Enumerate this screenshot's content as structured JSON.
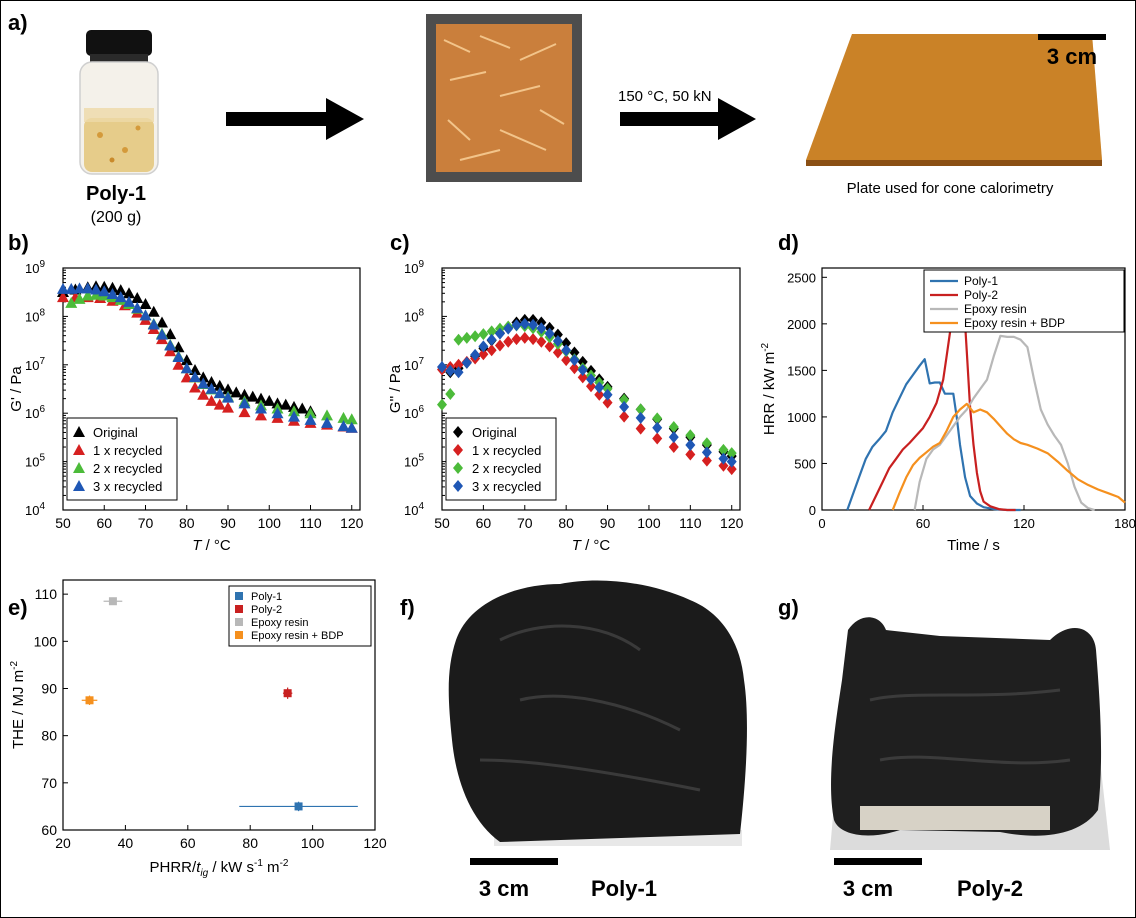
{
  "panels": {
    "a": {
      "letter": "a)",
      "material_name": "Poly-1",
      "material_amount": "(200 g)",
      "process_condition": "150 °C, 50 kN",
      "scale_bar": "3 cm",
      "plate_caption": "Plate used for cone calorimetry"
    },
    "f": {
      "letter": "f)",
      "scale_bar": "3 cm",
      "label": "Poly-1"
    },
    "g": {
      "letter": "g)",
      "scale_bar": "3 cm",
      "label": "Poly-2"
    }
  },
  "colors": {
    "black": "#000000",
    "red": "#d62020",
    "green": "#4cbb3a",
    "blue": "#1f57b5",
    "d_poly1": "#2f73b0",
    "d_poly2": "#c82020",
    "d_epoxy": "#b8b8b8",
    "d_epoxy_bdp": "#f5901e",
    "char": "#1b1b1b",
    "jar": "#e6d2a0",
    "plate": "#d08a2c",
    "mold": "#5b5b5b"
  },
  "chart_data": [
    {
      "id": "b",
      "letter": "b)",
      "type": "scatter",
      "xlabel_var": "T",
      "xlabel_unit": " / °C",
      "ylabel": "G' / Pa",
      "y_scale": "log",
      "xlim": [
        50,
        122
      ],
      "ylim_exp": [
        4,
        9
      ],
      "x_ticks": [
        "50",
        "60",
        "70",
        "80",
        "90",
        "100",
        "110",
        "120"
      ],
      "y_ticks": [
        "10",
        "10",
        "10",
        "10",
        "10",
        "10"
      ],
      "y_tick_exps": [
        "4",
        "5",
        "6",
        "7",
        "8",
        "9"
      ],
      "legend_position": "bottom-left",
      "series": [
        {
          "name": "Original",
          "color": "black",
          "marker": "triangle",
          "x": [
            50,
            53,
            56,
            58,
            60,
            62,
            64,
            66,
            68,
            70,
            72,
            74,
            76,
            78,
            80,
            82,
            84,
            86,
            88,
            90,
            92,
            94,
            96,
            98,
            100,
            102,
            104,
            106,
            108,
            110
          ],
          "y": [
            320000000.0,
            360000000.0,
            400000000.0,
            420000000.0,
            410000000.0,
            390000000.0,
            350000000.0,
            300000000.0,
            240000000.0,
            180000000.0,
            125000000.0,
            75000000.0,
            43000000.0,
            23000000.0,
            12500000.0,
            7800000.0,
            5500000.0,
            4400000.0,
            3700000.0,
            3100000.0,
            2700000.0,
            2400000.0,
            2200000.0,
            2000000.0,
            1800000.0,
            1600000.0,
            1500000.0,
            1350000.0,
            1250000.0,
            1100000.0
          ]
        },
        {
          "name": "1 x recycled",
          "color": "red",
          "marker": "triangle",
          "x": [
            50,
            53,
            56,
            59,
            62,
            65,
            68,
            70,
            72,
            74,
            76,
            78,
            80,
            82,
            84,
            86,
            88,
            90,
            94,
            98,
            102,
            106,
            110,
            114,
            118,
            120
          ],
          "y": [
            250000000.0,
            250000000.0,
            250000000.0,
            240000000.0,
            210000000.0,
            170000000.0,
            120000000.0,
            85000000.0,
            55000000.0,
            34000000.0,
            19000000.0,
            10000000.0,
            5500000.0,
            3400000.0,
            2400000.0,
            1800000.0,
            1500000.0,
            1300000.0,
            1050000.0,
            900000.0,
            800000.0,
            700000.0,
            630000.0,
            580000.0,
            530000.0,
            500000.0
          ]
        },
        {
          "name": "2 x recycled",
          "color": "green",
          "marker": "triangle",
          "x": [
            52,
            54,
            56,
            58,
            60,
            62,
            64,
            66,
            68,
            70,
            72,
            74,
            76,
            78,
            80,
            82,
            84,
            86,
            88,
            90,
            94,
            98,
            102,
            106,
            110,
            114,
            118,
            120
          ],
          "y": [
            190000000.0,
            230000000.0,
            270000000.0,
            280000000.0,
            270000000.0,
            250000000.0,
            220000000.0,
            180000000.0,
            145000000.0,
            105000000.0,
            70000000.0,
            44000000.0,
            26000000.0,
            15000000.0,
            8500000.0,
            5500000.0,
            4000000.0,
            3100000.0,
            2600000.0,
            2200000.0,
            1750000.0,
            1450000.0,
            1250000.0,
            1100000.0,
            1000000.0,
            900000.0,
            800000.0,
            750000.0
          ]
        },
        {
          "name": "3 x recycled",
          "color": "blue",
          "marker": "triangle",
          "x": [
            50,
            52,
            54,
            56,
            58,
            60,
            62,
            64,
            66,
            68,
            70,
            72,
            74,
            76,
            78,
            80,
            82,
            84,
            86,
            88,
            90,
            94,
            98,
            102,
            106,
            110,
            114,
            118,
            120
          ],
          "y": [
            370000000.0,
            370000000.0,
            380000000.0,
            380000000.0,
            360000000.0,
            330000000.0,
            290000000.0,
            250000000.0,
            200000000.0,
            150000000.0,
            105000000.0,
            68000000.0,
            42000000.0,
            25000000.0,
            14500000.0,
            8500000.0,
            5600000.0,
            4100000.0,
            3200000.0,
            2600000.0,
            2100000.0,
            1600000.0,
            1250000.0,
            1000000.0,
            850000.0,
            730000.0,
            630000.0,
            540000.0,
            500000.0
          ]
        }
      ]
    },
    {
      "id": "c",
      "letter": "c)",
      "type": "scatter",
      "xlabel_var": "T",
      "xlabel_unit": " / °C",
      "ylabel": "G'' / Pa",
      "y_scale": "log",
      "xlim": [
        50,
        122
      ],
      "ylim_exp": [
        4,
        9
      ],
      "x_ticks": [
        "50",
        "60",
        "70",
        "80",
        "90",
        "100",
        "110",
        "120"
      ],
      "y_ticks": [
        "10",
        "10",
        "10",
        "10",
        "10",
        "10"
      ],
      "y_tick_exps": [
        "4",
        "5",
        "6",
        "7",
        "8",
        "9"
      ],
      "legend_position": "bottom-left",
      "series": [
        {
          "name": "Original",
          "color": "black",
          "marker": "diamond",
          "x": [
            52,
            54,
            56,
            58,
            60,
            62,
            64,
            66,
            68,
            70,
            72,
            74,
            76,
            78,
            80,
            82,
            84,
            86,
            88,
            90,
            94,
            98,
            102,
            106,
            110,
            114,
            118,
            120
          ],
          "y": [
            7000000.0,
            8500000.0,
            11000000.0,
            15000000.0,
            22000000.0,
            32000000.0,
            45000000.0,
            60000000.0,
            75000000.0,
            85000000.0,
            85000000.0,
            75000000.0,
            58000000.0,
            42000000.0,
            28000000.0,
            18000000.0,
            11500000.0,
            7500000.0,
            5000000.0,
            3500000.0,
            2000000.0,
            1200000.0,
            750000.0,
            480000.0,
            320000.0,
            220000.0,
            160000.0,
            130000.0
          ]
        },
        {
          "name": "1 x recycled",
          "color": "red",
          "marker": "diamond",
          "x": [
            50,
            52,
            54,
            56,
            58,
            60,
            62,
            64,
            66,
            68,
            70,
            72,
            74,
            76,
            78,
            80,
            82,
            84,
            86,
            88,
            90,
            94,
            98,
            102,
            106,
            110,
            114,
            118,
            120
          ],
          "y": [
            8000000.0,
            9000000.0,
            10000000.0,
            11500000.0,
            13500000.0,
            16500000.0,
            20000000.0,
            25000000.0,
            30000000.0,
            34000000.0,
            36000000.0,
            34000000.0,
            30000000.0,
            24000000.0,
            18000000.0,
            12500000.0,
            8500000.0,
            5500000.0,
            3600000.0,
            2400000.0,
            1650000.0,
            850000.0,
            480000.0,
            300000.0,
            200000.0,
            140000.0,
            105000.0,
            82000.0,
            70000.0
          ]
        },
        {
          "name": "2 x recycled",
          "color": "green",
          "marker": "diamond",
          "x": [
            50,
            52,
            54,
            56,
            58,
            60,
            62,
            64,
            66,
            68,
            70,
            72,
            74,
            76,
            78,
            80,
            82,
            84,
            86,
            88,
            90,
            94,
            98,
            102,
            106,
            110,
            114,
            118,
            120
          ],
          "y": [
            1500000.0,
            2500000.0,
            33000000.0,
            36000000.0,
            39000000.0,
            43000000.0,
            49000000.0,
            56000000.0,
            62000000.0,
            65000000.0,
            63000000.0,
            57000000.0,
            48000000.0,
            37000000.0,
            27000000.0,
            19000000.0,
            13000000.0,
            8500000.0,
            6000000.0,
            4300000.0,
            3200000.0,
            1900000.0,
            1200000.0,
            780000.0,
            520000.0,
            350000.0,
            240000.0,
            175000.0,
            150000.0
          ]
        },
        {
          "name": "3 x recycled",
          "color": "blue",
          "marker": "diamond",
          "x": [
            50,
            52,
            54,
            56,
            58,
            60,
            62,
            64,
            66,
            68,
            70,
            72,
            74,
            76,
            78,
            80,
            82,
            84,
            86,
            88,
            90,
            94,
            98,
            102,
            106,
            110,
            114,
            118,
            120
          ],
          "y": [
            9000000.0,
            7500000.0,
            7000000.0,
            11000000.0,
            16000000.0,
            24000000.0,
            33000000.0,
            44000000.0,
            56000000.0,
            66000000.0,
            70000000.0,
            67000000.0,
            57000000.0,
            44000000.0,
            31000000.0,
            20000000.0,
            12500000.0,
            7800000.0,
            5000000.0,
            3400000.0,
            2400000.0,
            1350000.0,
            800000.0,
            500000.0,
            320000.0,
            220000.0,
            155000.0,
            115000.0,
            100000.0
          ]
        }
      ]
    },
    {
      "id": "d",
      "letter": "d)",
      "type": "line",
      "xlabel": "Time / s",
      "ylabel_base": "HRR / kW m",
      "ylabel_exp": "-2",
      "xlim": [
        0,
        180
      ],
      "ylim": [
        0,
        2600
      ],
      "x_ticks": [
        0,
        60,
        120,
        180
      ],
      "y_ticks": [
        0,
        500,
        1000,
        1500,
        2000,
        2500
      ],
      "legend_position": "top-right",
      "series": [
        {
          "name": "Poly-1",
          "color": "d_poly1",
          "x": [
            15,
            18,
            22,
            26,
            30,
            34,
            38,
            42,
            46,
            50,
            54,
            58,
            61,
            64,
            67,
            70,
            73,
            76,
            78,
            80,
            82,
            85,
            88,
            92,
            96,
            102,
            110,
            118
          ],
          "y": [
            0,
            150,
            350,
            550,
            680,
            760,
            850,
            1050,
            1200,
            1350,
            1450,
            1550,
            1620,
            1360,
            1370,
            1370,
            1250,
            1250,
            1250,
            1000,
            700,
            350,
            150,
            70,
            30,
            10,
            0,
            0
          ]
        },
        {
          "name": "Poly-2",
          "color": "d_poly2",
          "x": [
            28,
            32,
            36,
            40,
            44,
            48,
            52,
            56,
            60,
            64,
            68,
            72,
            74,
            76,
            78,
            80,
            82,
            84,
            86,
            88,
            90,
            92,
            94,
            96,
            100,
            105,
            110,
            115
          ],
          "y": [
            0,
            150,
            300,
            450,
            550,
            650,
            720,
            800,
            880,
            1000,
            1150,
            1400,
            1650,
            1900,
            2200,
            2450,
            2480,
            2300,
            1700,
            1100,
            700,
            400,
            200,
            90,
            40,
            10,
            0,
            0
          ]
        },
        {
          "name": "Epoxy resin",
          "color": "d_epoxy",
          "x": [
            55,
            58,
            62,
            66,
            70,
            74,
            78,
            82,
            86,
            90,
            94,
            98,
            102,
            106,
            110,
            114,
            118,
            122,
            126,
            130,
            134,
            138,
            142,
            146,
            150,
            154,
            158,
            162
          ],
          "y": [
            0,
            300,
            550,
            650,
            700,
            800,
            900,
            1000,
            1080,
            1200,
            1300,
            1400,
            1650,
            1870,
            1860,
            1860,
            1830,
            1750,
            1400,
            1080,
            920,
            800,
            700,
            500,
            250,
            80,
            20,
            0
          ]
        },
        {
          "name": "Epoxy resin + BDP",
          "color": "d_epoxy_bdp",
          "x": [
            42,
            46,
            50,
            54,
            58,
            62,
            66,
            70,
            74,
            78,
            82,
            86,
            90,
            94,
            98,
            102,
            106,
            110,
            114,
            118,
            122,
            128,
            134,
            140,
            146,
            152,
            158,
            164,
            170,
            176,
            180
          ],
          "y": [
            0,
            180,
            350,
            480,
            560,
            620,
            680,
            720,
            850,
            1000,
            1080,
            1140,
            1050,
            1080,
            1050,
            980,
            900,
            820,
            760,
            720,
            700,
            660,
            610,
            520,
            420,
            330,
            270,
            220,
            180,
            140,
            80
          ]
        }
      ]
    },
    {
      "id": "e",
      "letter": "e)",
      "type": "scatter",
      "xlabel_base": "PHRR/",
      "xlabel_var": "t",
      "xlabel_sub": "ig",
      "xlabel_unit": " /  kW s",
      "xlabel_exp1": "-1",
      "xlabel_mid": " m",
      "xlabel_exp2": "-2",
      "ylabel_base": "THE /  MJ m",
      "ylabel_exp": "-2",
      "xlim": [
        20,
        120
      ],
      "ylim": [
        60,
        113
      ],
      "x_ticks": [
        20,
        40,
        60,
        80,
        100,
        120
      ],
      "y_ticks": [
        60,
        70,
        80,
        90,
        100,
        110
      ],
      "legend_position": "top-right",
      "series": [
        {
          "name": "Poly-1",
          "color": "d_poly1",
          "x": 95.5,
          "y": 65,
          "xerr": 19,
          "yerr": 1
        },
        {
          "name": "Poly-2",
          "color": "d_poly2",
          "x": 92,
          "y": 89,
          "xerr": 1.5,
          "yerr": 1.2
        },
        {
          "name": "Epoxy resin",
          "color": "d_epoxy",
          "x": 36,
          "y": 108.5,
          "xerr": 3,
          "yerr": 0.8
        },
        {
          "name": "Epoxy resin + BDP",
          "color": "d_epoxy_bdp",
          "x": 28.5,
          "y": 87.5,
          "xerr": 2.5,
          "yerr": 1
        }
      ]
    }
  ]
}
